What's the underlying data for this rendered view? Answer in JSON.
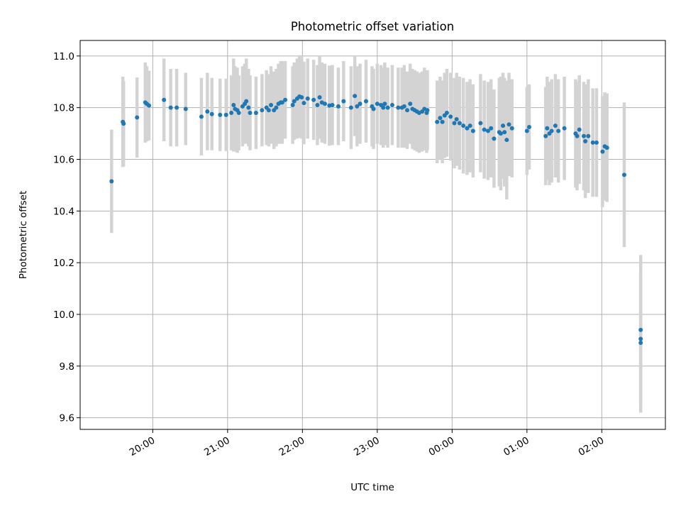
{
  "chart_data": {
    "type": "scatter",
    "title": "Photometric offset variation",
    "xlabel": "UTC time",
    "ylabel": "Photometric offset",
    "x_unit": "UTC time (hours, clock wraps after 24)",
    "xlim": [
      19.03,
      26.85
    ],
    "ylim": [
      9.555,
      11.06
    ],
    "x_ticks": [
      20,
      21,
      22,
      23,
      24,
      25,
      26
    ],
    "x_tick_labels": [
      "20:00",
      "21:00",
      "22:00",
      "23:00",
      "00:00",
      "01:00",
      "02:00"
    ],
    "y_ticks": [
      9.6,
      9.8,
      10.0,
      10.2,
      10.4,
      10.6,
      10.8,
      11.0
    ],
    "y_tick_labels": [
      "9.6",
      "9.8",
      "10.0",
      "10.2",
      "10.4",
      "10.6",
      "10.8",
      "11.0"
    ],
    "grid": true,
    "colors": {
      "points": "#1f77b4",
      "error_bars": "#d3d3d3",
      "grid": "#b0b0b0"
    },
    "series": [
      {
        "x": [
          19.45,
          19.6,
          19.61,
          19.79,
          19.9,
          19.92,
          19.95,
          20.15,
          20.24,
          20.32,
          20.44,
          20.65,
          20.73,
          20.79,
          20.9,
          20.98,
          21.05,
          21.08,
          21.1,
          21.13,
          21.15,
          21.2,
          21.23,
          21.25,
          21.28,
          21.3,
          21.38,
          21.46,
          21.52,
          21.55,
          21.58,
          21.62,
          21.65,
          21.68,
          21.71,
          21.73,
          21.77,
          21.87,
          21.89,
          21.93,
          21.96,
          21.99,
          22.02,
          22.07,
          22.15,
          22.2,
          22.23,
          22.26,
          22.3,
          22.36,
          22.4,
          22.48,
          22.55,
          22.65,
          22.7,
          22.73,
          22.77,
          22.85,
          22.93,
          22.95,
          23.0,
          23.05,
          23.08,
          23.1,
          23.14,
          23.2,
          23.28,
          23.33,
          23.36,
          23.4,
          23.44,
          23.47,
          23.5,
          23.53,
          23.56,
          23.6,
          23.63,
          23.66,
          23.67,
          23.8,
          23.84,
          23.87,
          23.9,
          23.93,
          23.98,
          24.03,
          24.06,
          24.1,
          24.15,
          24.2,
          24.24,
          24.28,
          24.38,
          24.43,
          24.48,
          24.52,
          24.56,
          24.63,
          24.65,
          24.68,
          24.7,
          24.73,
          24.76,
          24.8,
          25.0,
          25.03,
          25.25,
          25.27,
          25.3,
          25.33,
          25.38,
          25.42,
          25.5,
          25.65,
          25.67,
          25.7,
          25.76,
          25.78,
          25.82,
          25.88,
          25.93,
          26.01,
          26.04,
          26.07,
          26.3,
          26.52,
          26.52,
          26.52
        ],
        "y": [
          10.515,
          10.745,
          10.738,
          10.762,
          10.82,
          10.815,
          10.808,
          10.83,
          10.8,
          10.8,
          10.795,
          10.765,
          10.785,
          10.775,
          10.772,
          10.772,
          10.78,
          10.81,
          10.795,
          10.79,
          10.78,
          10.805,
          10.815,
          10.825,
          10.8,
          10.78,
          10.78,
          10.79,
          10.8,
          10.79,
          10.81,
          10.79,
          10.8,
          10.815,
          10.82,
          10.82,
          10.83,
          10.81,
          10.825,
          10.835,
          10.843,
          10.84,
          10.818,
          10.835,
          10.83,
          10.81,
          10.84,
          10.82,
          10.815,
          10.808,
          10.81,
          10.805,
          10.825,
          10.8,
          10.845,
          10.805,
          10.815,
          10.825,
          10.805,
          10.795,
          10.815,
          10.81,
          10.8,
          10.815,
          10.8,
          10.81,
          10.8,
          10.8,
          10.805,
          10.79,
          10.815,
          10.795,
          10.79,
          10.785,
          10.78,
          10.785,
          10.795,
          10.78,
          10.79,
          10.745,
          10.76,
          10.745,
          10.77,
          10.78,
          10.765,
          10.74,
          10.755,
          10.74,
          10.73,
          10.72,
          10.73,
          10.71,
          10.74,
          10.715,
          10.71,
          10.72,
          10.68,
          10.705,
          10.7,
          10.73,
          10.705,
          10.675,
          10.735,
          10.72,
          10.71,
          10.725,
          10.69,
          10.72,
          10.7,
          10.71,
          10.73,
          10.71,
          10.72,
          10.7,
          10.69,
          10.715,
          10.69,
          10.67,
          10.69,
          10.665,
          10.665,
          10.63,
          10.65,
          10.645,
          10.54,
          9.94,
          9.905,
          9.89
        ],
        "err": [
          0.2,
          0.175,
          0.165,
          0.155,
          0.155,
          0.145,
          0.135,
          0.16,
          0.15,
          0.15,
          0.14,
          0.15,
          0.15,
          0.14,
          0.14,
          0.14,
          0.145,
          0.18,
          0.165,
          0.165,
          0.145,
          0.155,
          0.155,
          0.165,
          0.15,
          0.145,
          0.14,
          0.14,
          0.145,
          0.14,
          0.15,
          0.15,
          0.15,
          0.155,
          0.16,
          0.16,
          0.15,
          0.15,
          0.15,
          0.155,
          0.16,
          0.16,
          0.16,
          0.155,
          0.155,
          0.155,
          0.16,
          0.155,
          0.155,
          0.155,
          0.155,
          0.15,
          0.155,
          0.16,
          0.155,
          0.155,
          0.155,
          0.16,
          0.155,
          0.155,
          0.155,
          0.155,
          0.155,
          0.16,
          0.155,
          0.155,
          0.155,
          0.155,
          0.16,
          0.15,
          0.155,
          0.155,
          0.155,
          0.155,
          0.155,
          0.155,
          0.16,
          0.155,
          0.155,
          0.16,
          0.16,
          0.16,
          0.165,
          0.17,
          0.17,
          0.175,
          0.18,
          0.18,
          0.185,
          0.18,
          0.18,
          0.18,
          0.19,
          0.19,
          0.19,
          0.19,
          0.19,
          0.21,
          0.22,
          0.205,
          0.21,
          0.23,
          0.2,
          0.19,
          0.17,
          0.165,
          0.19,
          0.2,
          0.2,
          0.2,
          0.2,
          0.2,
          0.2,
          0.21,
          0.21,
          0.21,
          0.21,
          0.22,
          0.22,
          0.21,
          0.21,
          0.215,
          0.21,
          0.21,
          0.28,
          0.29,
          0.25,
          0.27
        ]
      }
    ]
  }
}
